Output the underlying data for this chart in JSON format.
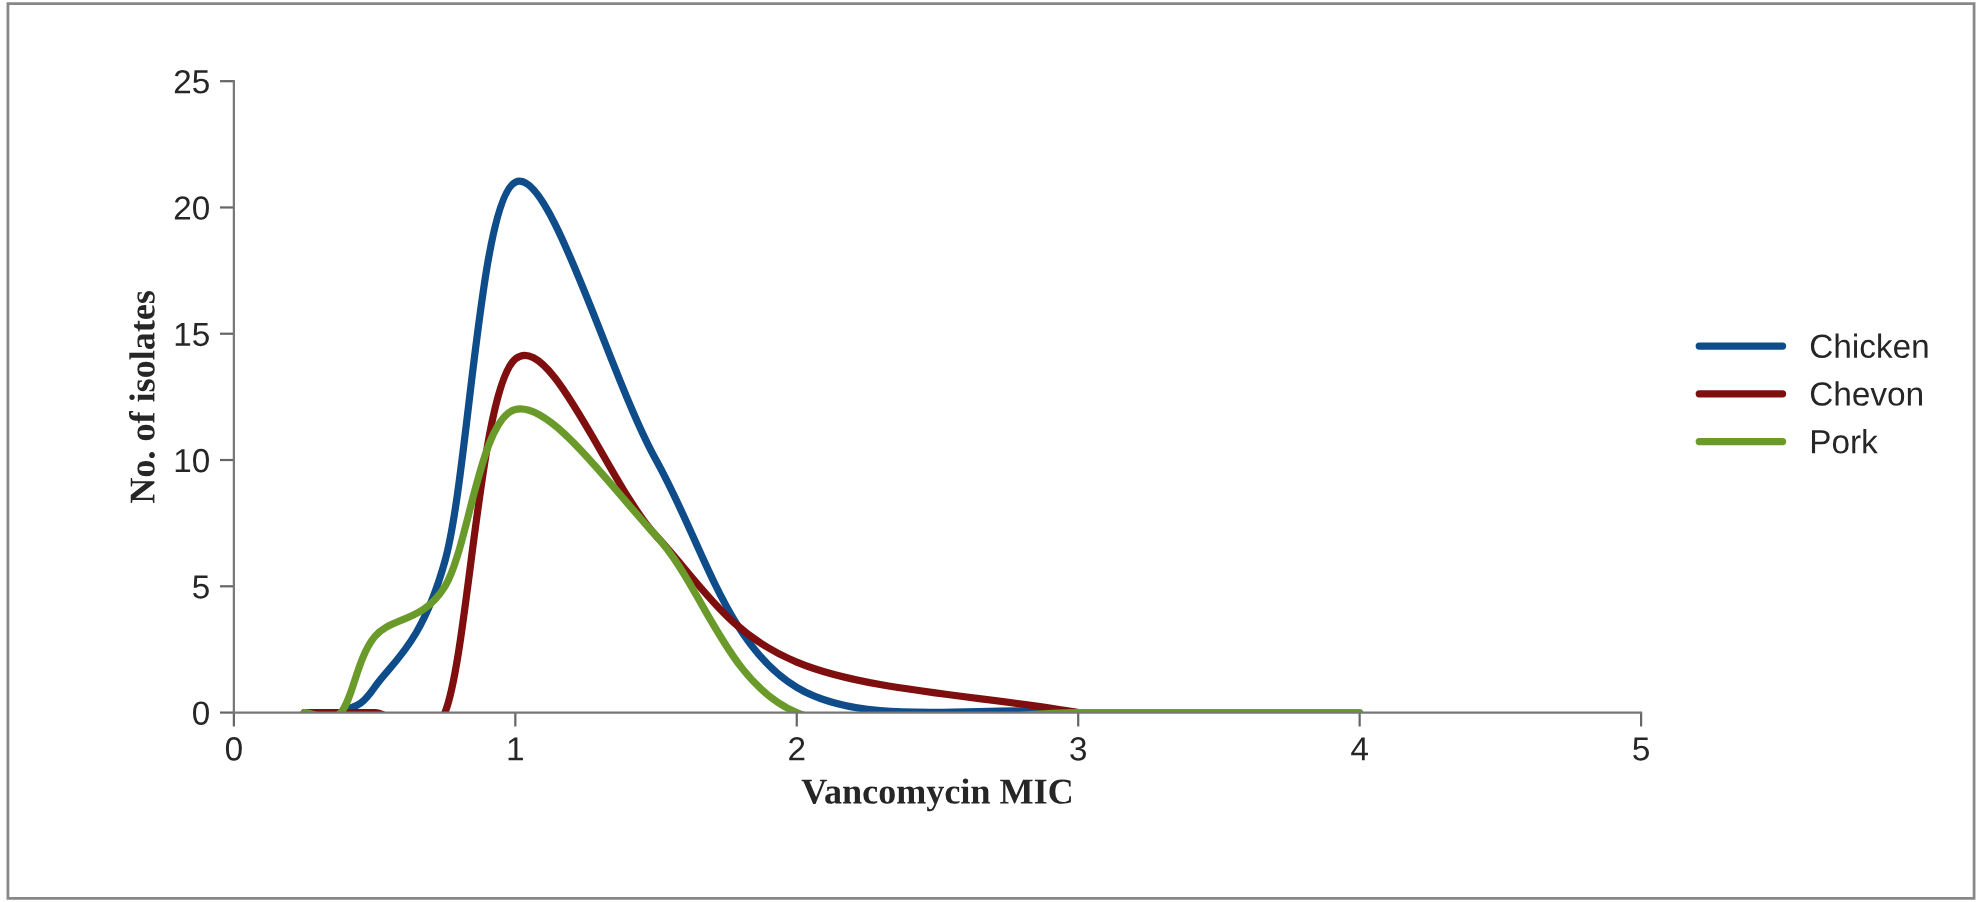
{
  "chart_data": {
    "type": "line",
    "xlabel": "Vancomycin MIC",
    "ylabel": "No. of isolates",
    "xlim": [
      0,
      5
    ],
    "xticks": [
      0,
      1,
      2,
      3,
      4,
      5
    ],
    "ylim": [
      0,
      25
    ],
    "yticks": [
      0,
      5,
      10,
      15,
      20,
      25
    ],
    "legend": "right",
    "grid": false,
    "marker": "none",
    "line_style": "solid",
    "series": [
      {
        "name": "Chicken",
        "color": "#0e4c8a",
        "x": [
          0.38,
          0.5,
          0.75,
          1,
          1.5,
          2,
          3
        ],
        "values": [
          0,
          1,
          6,
          21,
          10,
          1,
          0
        ]
      },
      {
        "name": "Chevon",
        "color": "#7f0f0f",
        "x": [
          0.25,
          0.5,
          0.75,
          1,
          1.5,
          2,
          3
        ],
        "values": [
          0,
          0,
          0,
          14,
          7,
          2,
          0
        ]
      },
      {
        "name": "Pork",
        "color": "#6a9a2a",
        "x": [
          0.25,
          0.38,
          0.5,
          0.75,
          1,
          1.5,
          2,
          3,
          4
        ],
        "values": [
          0,
          0,
          3,
          5,
          12,
          7,
          0,
          0,
          0
        ]
      }
    ]
  }
}
